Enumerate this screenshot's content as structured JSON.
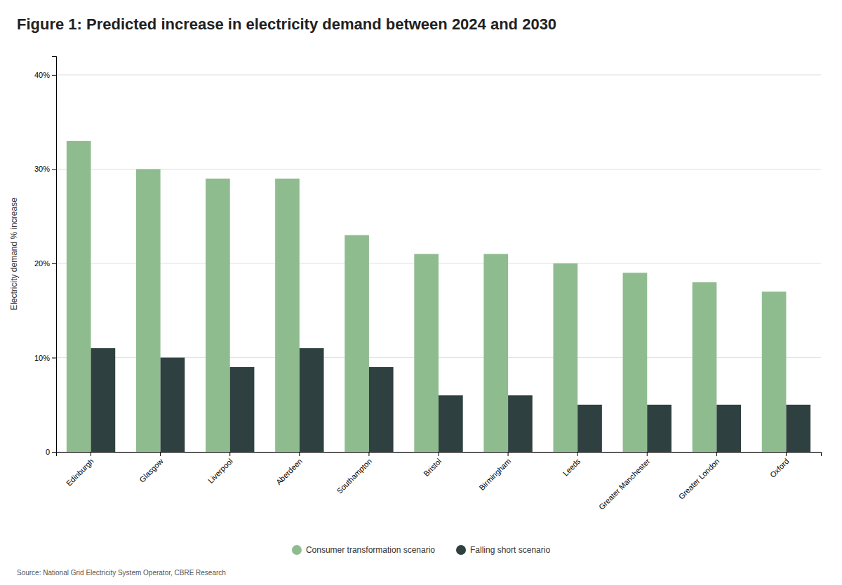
{
  "chart_data": {
    "type": "bar",
    "title": "Figure 1: Predicted increase in electricity demand between 2024 and 2030",
    "categories": [
      "Edinburgh",
      "Glasgow",
      "Liverpool",
      "Aberdeen",
      "Southampton",
      "Bristol",
      "Birmingham",
      "Leeds",
      "Greater Manchester",
      "Greater London",
      "Oxford"
    ],
    "series": [
      {
        "name": "Consumer transformation scenario",
        "color": "#8fbc8f",
        "values": [
          33,
          30,
          29,
          29,
          23,
          21,
          21,
          20,
          19,
          18,
          17
        ]
      },
      {
        "name": "Falling short scenario",
        "color": "#2f4040",
        "values": [
          11,
          10,
          9,
          11,
          9,
          6,
          6,
          5,
          5,
          5,
          5
        ]
      }
    ],
    "ylabel": "Electricity demand % increase",
    "ylim": [
      0,
      42
    ],
    "yticks": [
      0,
      {
        "value": 10,
        "label": "10%"
      },
      {
        "value": 20,
        "label": "20%"
      },
      {
        "value": 30,
        "label": "30%"
      },
      {
        "value": 40,
        "label": "40%"
      }
    ],
    "grid": true,
    "legend": "bottom",
    "source": "Source: National Grid Electricity System Operator, CBRE Research"
  }
}
